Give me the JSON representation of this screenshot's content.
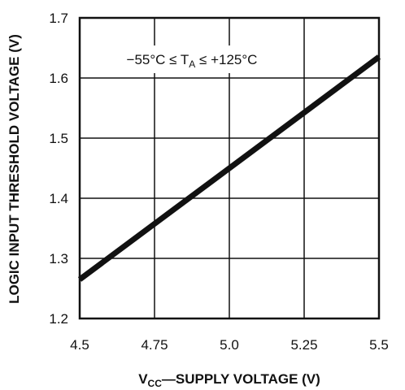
{
  "chart_data": {
    "type": "line",
    "xlabel": "VCC—SUPPLY VOLTAGE (V)",
    "xlabel_main": "V",
    "xlabel_sub": "CC",
    "xlabel_rest": "—SUPPLY VOLTAGE (V)",
    "ylabel": "LOGIC INPUT THRESHOLD VOLTAGE (V)",
    "annotation": "−55°C ≤ TA ≤ +125°C",
    "annotation_pre": "−55°C ≤ T",
    "annotation_sub": "A",
    "annotation_post": " ≤ +125°C",
    "xlim": [
      4.5,
      5.5
    ],
    "ylim": [
      1.2,
      1.7
    ],
    "xticks": [
      "4.5",
      "4.75",
      "5.0",
      "5.25",
      "5.5"
    ],
    "yticks": [
      "1.2",
      "1.3",
      "1.4",
      "1.5",
      "1.6",
      "1.7"
    ],
    "grid": true,
    "series": [
      {
        "x": [
          4.5,
          5.5
        ],
        "y": [
          1.265,
          1.635
        ]
      }
    ]
  }
}
